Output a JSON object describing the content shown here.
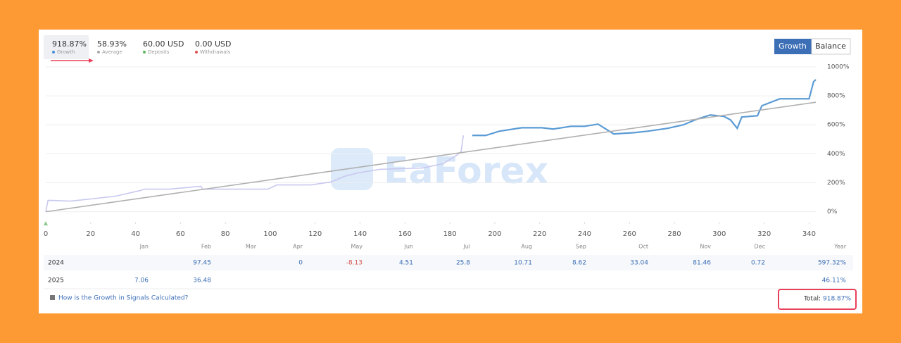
{
  "stats": [
    {
      "value": "918.87%",
      "label": "Growth",
      "color": "#4a90d9"
    },
    {
      "value": "58.93%",
      "label": "Average",
      "color": "#aaaaaa"
    },
    {
      "value": "60.00 USD",
      "label": "Deposits",
      "color": "#5cb85c"
    },
    {
      "value": "0.00 USD",
      "label": "Withdrawals",
      "color": "#e05050"
    }
  ],
  "buttons": [
    "Growth",
    "Balance"
  ],
  "watermark": "EaForex",
  "chart_data": {
    "type": "line",
    "xlim": [
      0,
      343
    ],
    "xticks": [
      0,
      20,
      40,
      60,
      80,
      100,
      120,
      140,
      160,
      180,
      200,
      220,
      240,
      260,
      280,
      300,
      320,
      340
    ],
    "ylim": [
      -70,
      1000
    ],
    "yticks": [
      {
        "value": 0,
        "label": "0%"
      },
      {
        "value": 200,
        "label": "200%"
      },
      {
        "value": 400,
        "label": "400%"
      },
      {
        "value": 600,
        "label": "600%"
      },
      {
        "value": 800,
        "label": "800%"
      },
      {
        "value": 1000,
        "label": "1000%"
      }
    ],
    "grid": true,
    "series": [
      {
        "color": "#c8c8f0",
        "x": [
          0,
          1,
          3,
          11,
          20,
          31,
          42,
          44,
          55,
          69,
          70,
          83,
          99,
          103,
          118,
          127,
          133,
          139,
          149,
          168,
          177,
          183,
          185,
          186
        ],
        "values": [
          0,
          78,
          78,
          73,
          88,
          107,
          146,
          156,
          156,
          176,
          156,
          156,
          156,
          185,
          185,
          205,
          244,
          268,
          293,
          302,
          332,
          390,
          415,
          527
        ]
      },
      {
        "color": "#5b9bd5",
        "x": [
          190,
          196,
          202,
          212,
          221,
          226,
          234,
          240,
          246,
          253,
          262,
          268,
          277,
          284,
          290,
          296,
          302,
          305,
          308,
          310,
          317,
          319,
          327,
          340,
          342,
          343
        ],
        "values": [
          527,
          527,
          556,
          580,
          580,
          571,
          590,
          590,
          605,
          537,
          546,
          556,
          576,
          600,
          639,
          668,
          659,
          634,
          576,
          654,
          663,
          732,
          780,
          780,
          898,
          912
        ]
      },
      {
        "color": "#b0b0b0",
        "x": [
          0,
          343
        ],
        "values": [
          0,
          756
        ]
      }
    ]
  },
  "table": {
    "header": [
      "Jan",
      "Feb",
      "Mar",
      "Apr",
      "May",
      "Jun",
      "Jul",
      "Aug",
      "Sep",
      "Oct",
      "Nov",
      "Dec",
      "Year"
    ],
    "rows": [
      {
        "year": "2024",
        "cells": [
          null,
          "97.45",
          null,
          "0",
          "-8.13",
          "4.51",
          "25.8",
          "10.71",
          "8.62",
          "33.04",
          "81.46",
          "0.72",
          "597.32%"
        ]
      },
      {
        "year": "2025",
        "cells": [
          "7.06",
          "36.48",
          null,
          null,
          null,
          null,
          null,
          null,
          null,
          null,
          null,
          null,
          "46.11%"
        ]
      }
    ]
  },
  "footer": {
    "link": "How is the Growth in Signals Calculated?",
    "total_label": "Total:",
    "total_value": "918.87%"
  }
}
